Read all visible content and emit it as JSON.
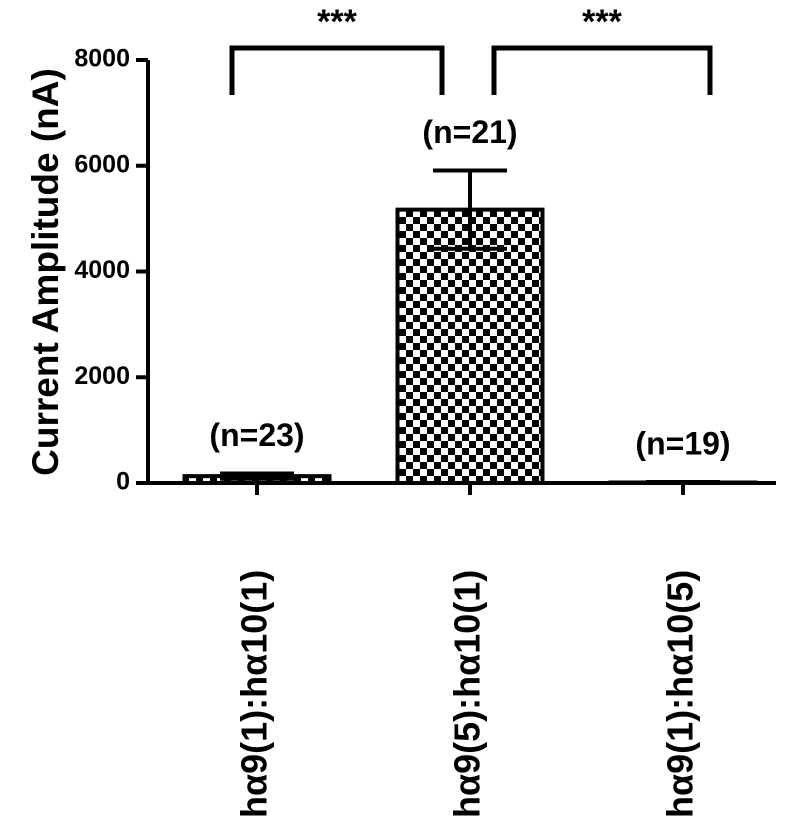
{
  "chart_data": {
    "type": "bar",
    "ylabel": "Current Amplitude (nA)",
    "categories": [
      "hα9(1):hα10(1)",
      "hα9(5):hα10(1)",
      "hα9(1):hα10(5)"
    ],
    "values": [
      130,
      5170,
      10
    ],
    "errors": [
      50,
      740,
      10
    ],
    "n_labels": [
      "(n=23)",
      "(n=21)",
      "(n=19)"
    ],
    "significance": [
      "***",
      "***"
    ],
    "color": "#000000",
    "ylim": [
      0,
      8000
    ],
    "yticks": [
      0,
      2000,
      4000,
      6000,
      8000
    ]
  }
}
